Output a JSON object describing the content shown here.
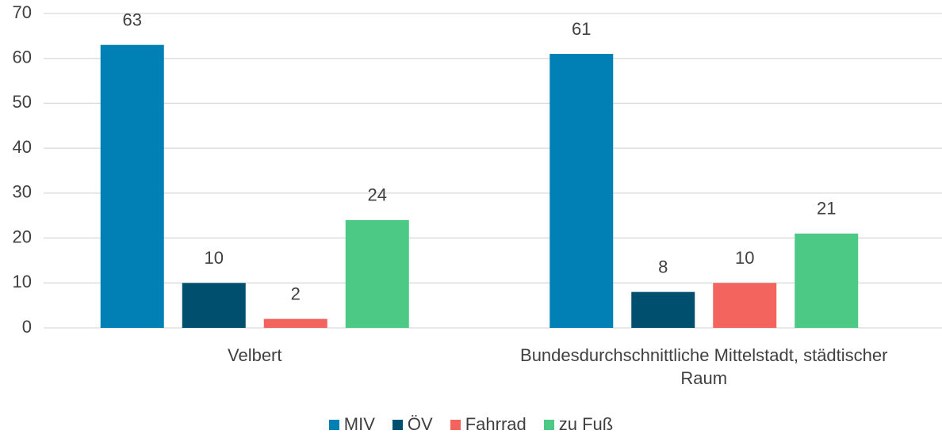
{
  "chart_data": {
    "type": "bar",
    "categories": [
      "Velbert",
      "Bundesdurchschnittliche Mittelstadt, städtischer Raum"
    ],
    "series": [
      {
        "name": "MIV",
        "color": "#0080b4",
        "values": [
          63,
          61
        ]
      },
      {
        "name": "ÖV",
        "color": "#004f6e",
        "values": [
          10,
          8
        ]
      },
      {
        "name": "Fahrrad",
        "color": "#f4645f",
        "values": [
          2,
          10
        ]
      },
      {
        "name": "zu Fuß",
        "color": "#4cc985",
        "values": [
          24,
          21
        ]
      }
    ],
    "ylim": [
      0,
      70
    ],
    "yticks": [
      0,
      10,
      20,
      30,
      40,
      50,
      60,
      70
    ],
    "grid": true,
    "legend": "bottom"
  }
}
